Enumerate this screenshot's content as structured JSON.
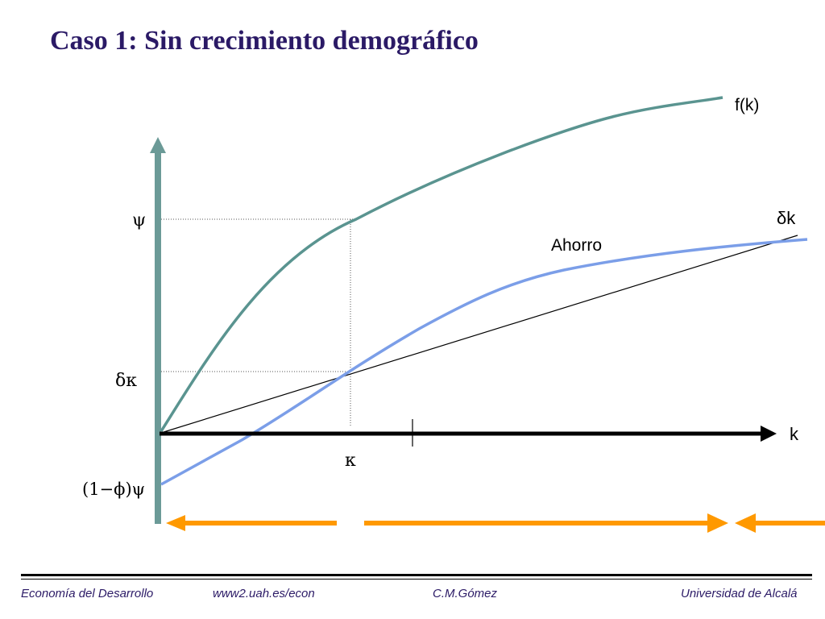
{
  "slide": {
    "title": "Caso 1: Sin crecimiento demográfico"
  },
  "diagram": {
    "curve_labels": {
      "production": "f(k)",
      "depreciation": "δk",
      "savings": "Ahorro"
    },
    "axis_labels": {
      "x": "k"
    },
    "axis_markers": {
      "y_output": "ψ",
      "y_depreciation": "δκ",
      "y_intercept": "(1−ϕ)ψ",
      "x_steady_state": "κ"
    },
    "colors": {
      "production_curve": "#5a9490",
      "savings_curve": "#7b9ee8",
      "axis": "#000000",
      "y_axis": "#6b9a97",
      "arrows": "#ff9900",
      "title": "#2b1a66"
    }
  },
  "footer": {
    "left": "Economía del Desarrollo",
    "center_left": "www2.uah.es/econ",
    "center_right": "C.M.Gómez",
    "right": "Universidad de Alcalá"
  }
}
